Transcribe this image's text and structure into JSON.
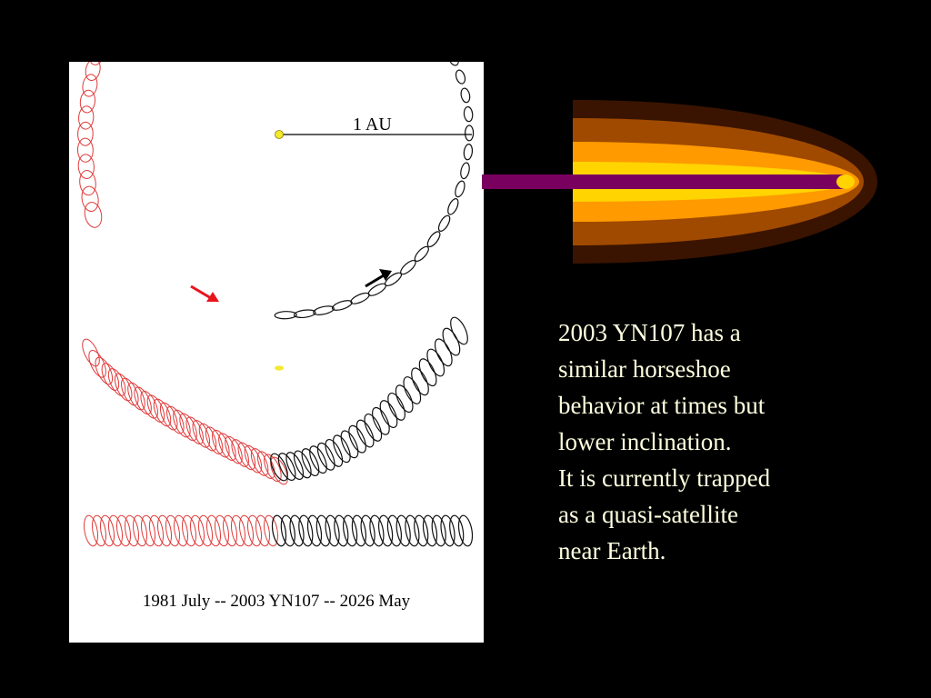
{
  "figure": {
    "au_label": "1 AU",
    "caption": "1981 July -- 2003 YN107 -- 2026 May",
    "colors": {
      "past_path": "#e03a3a",
      "future_path": "#111111",
      "sun": "#f2ea2a",
      "red_arrow": "#e8141c",
      "black_arrow": "#000000"
    }
  },
  "decoration": {
    "type": "comet",
    "colors": [
      "#3a1400",
      "#a04a00",
      "#ff9a00",
      "#ffd400",
      "#7a0060"
    ]
  },
  "text_block": {
    "lines": [
      "2003 YN107 has a",
      "similar horseshoe",
      "behavior at times but",
      "lower inclination.",
      "It is currently trapped",
      "as a quasi-satellite",
      "near Earth."
    ]
  }
}
